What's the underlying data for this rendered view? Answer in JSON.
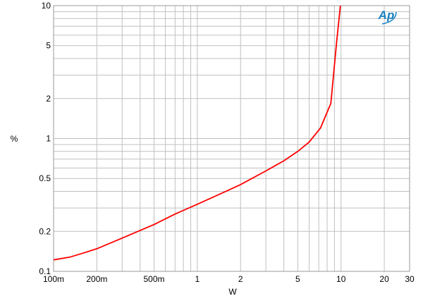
{
  "chart_data": {
    "type": "line",
    "title": "",
    "xlabel": "W",
    "ylabel": "%",
    "xscale": "log",
    "yscale": "log",
    "xlim": [
      0.1,
      30
    ],
    "ylim": [
      0.1,
      10
    ],
    "grid": true,
    "x_ticks": [
      {
        "v": 0.1,
        "label": "100m"
      },
      {
        "v": 0.2,
        "label": "200m"
      },
      {
        "v": 0.5,
        "label": "500m"
      },
      {
        "v": 1,
        "label": "1"
      },
      {
        "v": 2,
        "label": "2"
      },
      {
        "v": 5,
        "label": "5"
      },
      {
        "v": 10,
        "label": "10"
      },
      {
        "v": 20,
        "label": "20"
      },
      {
        "v": 30,
        "label": "30"
      }
    ],
    "y_ticks": [
      {
        "v": 0.1,
        "label": "0.1"
      },
      {
        "v": 0.2,
        "label": "0.2"
      },
      {
        "v": 0.5,
        "label": "0.5"
      },
      {
        "v": 1,
        "label": "1"
      },
      {
        "v": 2,
        "label": "2"
      },
      {
        "v": 5,
        "label": "5"
      },
      {
        "v": 10,
        "label": "10"
      }
    ],
    "series": [
      {
        "color": "#ff0000",
        "points": [
          [
            0.1,
            0.122
          ],
          [
            0.13,
            0.128
          ],
          [
            0.16,
            0.137
          ],
          [
            0.2,
            0.148
          ],
          [
            0.3,
            0.178
          ],
          [
            0.5,
            0.225
          ],
          [
            0.7,
            0.27
          ],
          [
            1,
            0.32
          ],
          [
            1.5,
            0.39
          ],
          [
            2,
            0.45
          ],
          [
            3,
            0.57
          ],
          [
            4,
            0.68
          ],
          [
            5,
            0.8
          ],
          [
            6,
            0.94
          ],
          [
            7.2,
            1.2
          ],
          [
            8.5,
            1.84
          ],
          [
            9.3,
            5.2
          ],
          [
            9.9,
            10
          ]
        ]
      }
    ],
    "logo": "AP"
  },
  "colors": {
    "grid": "#c0c0c0",
    "logo": "#1a7fc0"
  }
}
